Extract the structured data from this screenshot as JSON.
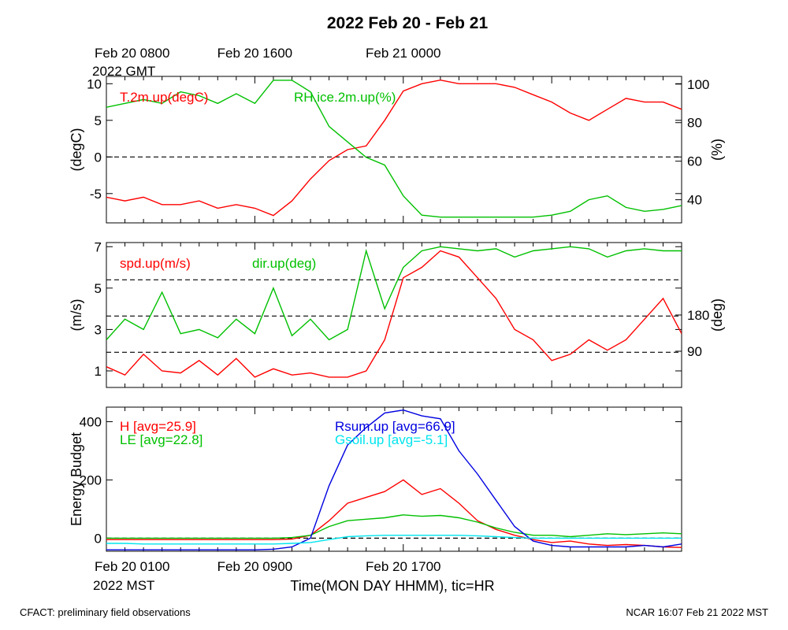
{
  "chart_data": {
    "title": "2022 Feb 20 - Feb 21",
    "x_range": [
      0,
      31
    ],
    "top_tick_labels": [
      {
        "hour": 0,
        "line1": "Feb 20 0800",
        "line2": "2022 GMT"
      },
      {
        "hour": 8,
        "line1": "Feb 20 1600",
        "line2": ""
      },
      {
        "hour": 16,
        "line1": "Feb 21 0000",
        "line2": ""
      }
    ],
    "bottom_tick_labels": [
      {
        "hour": 0,
        "line1": "Feb 20 0100",
        "line2": "2022 MST"
      },
      {
        "hour": 8,
        "line1": "Feb 20 0900",
        "line2": ""
      },
      {
        "hour": 16,
        "line1": "Feb 20 1700",
        "line2": ""
      }
    ],
    "xlabel": "Time(MON DAY HHMM), tic=HR",
    "footer_left": "CFACT: preliminary field observations",
    "footer_right": "NCAR 16:07 Feb 21 2022 MST",
    "panels": [
      {
        "type": "line",
        "ylabel_left": "(degC)",
        "ylabel_right": "(%)",
        "ylim_left": [
          -9,
          11
        ],
        "ylim_right": [
          28,
          104
        ],
        "yticks_left": [
          -5,
          0,
          5,
          10
        ],
        "yticks_right": [
          40,
          60,
          80,
          100
        ],
        "dashed_left": [
          0
        ],
        "series": [
          {
            "name": "T.2m.up(degC)",
            "axis": "left",
            "color": "#ff0000",
            "x": [
              0,
              1,
              2,
              3,
              4,
              5,
              6,
              7,
              8,
              9,
              10,
              11,
              12,
              13,
              14,
              15,
              16,
              17,
              18,
              19,
              20,
              21,
              22,
              23,
              24,
              25,
              26,
              27,
              28,
              29,
              30,
              31
            ],
            "y": [
              -5.5,
              -6,
              -5.5,
              -6.5,
              -6.5,
              -6,
              -7,
              -6.5,
              -7,
              -8,
              -6,
              -3,
              -0.5,
              1,
              1.5,
              5,
              9,
              10,
              10.5,
              10,
              10,
              10,
              9.5,
              8.5,
              7.5,
              6,
              5,
              6.5,
              8,
              7.5,
              7.5,
              6.5
            ]
          },
          {
            "name": "RH.ice.2m.up(%)",
            "axis": "right",
            "color": "#00c000",
            "x": [
              0,
              1,
              2,
              3,
              4,
              5,
              6,
              7,
              8,
              9,
              10,
              11,
              12,
              13,
              14,
              15,
              16,
              17,
              18,
              19,
              20,
              21,
              22,
              23,
              24,
              25,
              26,
              27,
              28,
              29,
              30,
              31
            ],
            "y": [
              88,
              90,
              92,
              90,
              96,
              94,
              90,
              95,
              90,
              102,
              102,
              96,
              78,
              70,
              62,
              58,
              42,
              32,
              31,
              31,
              31,
              31,
              31,
              31,
              32,
              34,
              40,
              42,
              36,
              34,
              35,
              37
            ]
          }
        ]
      },
      {
        "type": "line",
        "ylabel_left": "(m/s)",
        "ylabel_right": "(deg)",
        "ylim_left": [
          0.2,
          7.2
        ],
        "ylim_right": [
          0,
          360
        ],
        "yticks_left": [
          1,
          3,
          5,
          7
        ],
        "yticks_right": [
          90,
          180
        ],
        "dashed_left": [
          1.9,
          3.65,
          5.4
        ],
        "series": [
          {
            "name": "spd.up(m/s)",
            "axis": "left",
            "color": "#ff0000",
            "x": [
              0,
              1,
              2,
              3,
              4,
              5,
              6,
              7,
              8,
              9,
              10,
              11,
              12,
              13,
              14,
              15,
              16,
              17,
              18,
              19,
              20,
              21,
              22,
              23,
              24,
              25,
              26,
              27,
              28,
              29,
              30,
              31
            ],
            "y": [
              1.2,
              0.8,
              1.8,
              1.0,
              0.9,
              1.5,
              0.8,
              1.6,
              0.7,
              1.1,
              0.8,
              0.9,
              0.7,
              0.7,
              1.0,
              2.5,
              5.5,
              6.0,
              6.8,
              6.5,
              5.5,
              4.5,
              3.0,
              2.5,
              1.5,
              1.8,
              2.5,
              2.0,
              2.5,
              3.5,
              4.5,
              2.8
            ]
          },
          {
            "name": "dir.up(deg)",
            "axis": "left",
            "color": "#00c000",
            "x": [
              0,
              1,
              2,
              3,
              4,
              5,
              6,
              7,
              8,
              9,
              10,
              11,
              12,
              13,
              14,
              15,
              16,
              17,
              18,
              19,
              20,
              21,
              22,
              23,
              24,
              25,
              26,
              27,
              28,
              29,
              30,
              31
            ],
            "y": [
              2.5,
              3.5,
              3.0,
              4.8,
              2.8,
              3.0,
              2.6,
              3.5,
              2.8,
              5.0,
              2.7,
              3.5,
              2.5,
              3.0,
              6.8,
              4.0,
              6.0,
              6.8,
              7.0,
              6.9,
              6.8,
              6.9,
              6.5,
              6.8,
              6.9,
              7.0,
              6.9,
              6.5,
              6.8,
              6.9,
              6.8,
              6.8
            ]
          }
        ]
      },
      {
        "type": "line",
        "ylabel_left": "Energy Budget",
        "ylabel_right": "",
        "ylim_left": [
          -45,
          450
        ],
        "ylim_right": [],
        "yticks_left": [
          0,
          200,
          400
        ],
        "yticks_right": [],
        "dashed_left": [
          0
        ],
        "series": [
          {
            "name": "H [avg=25.9]",
            "axis": "left",
            "color": "#ff0000",
            "x": [
              0,
              1,
              2,
              3,
              4,
              5,
              6,
              7,
              8,
              9,
              10,
              11,
              12,
              13,
              14,
              15,
              16,
              17,
              18,
              19,
              20,
              21,
              22,
              23,
              24,
              25,
              26,
              27,
              28,
              29,
              30,
              31
            ],
            "y": [
              -5,
              -5,
              -5,
              -5,
              -5,
              -5,
              -5,
              -5,
              -5,
              -5,
              -3,
              10,
              60,
              120,
              140,
              160,
              200,
              150,
              170,
              120,
              60,
              30,
              10,
              -5,
              -15,
              -10,
              -20,
              -25,
              -22,
              -25,
              -30,
              -32
            ]
          },
          {
            "name": "LE [avg=22.8]",
            "axis": "left",
            "color": "#00c000",
            "x": [
              0,
              1,
              2,
              3,
              4,
              5,
              6,
              7,
              8,
              9,
              10,
              11,
              12,
              13,
              14,
              15,
              16,
              17,
              18,
              19,
              20,
              21,
              22,
              23,
              24,
              25,
              26,
              27,
              28,
              29,
              30,
              31
            ],
            "y": [
              0,
              0,
              0,
              0,
              0,
              0,
              0,
              0,
              0,
              0,
              2,
              10,
              40,
              60,
              65,
              70,
              80,
              75,
              78,
              70,
              55,
              35,
              20,
              10,
              10,
              5,
              10,
              15,
              12,
              15,
              18,
              15
            ]
          },
          {
            "name": "Rsum.up [avg=66.9]",
            "axis": "left",
            "color": "#0000e0",
            "x": [
              0,
              1,
              2,
              3,
              4,
              5,
              6,
              7,
              8,
              9,
              10,
              11,
              12,
              13,
              14,
              15,
              16,
              17,
              18,
              19,
              20,
              21,
              22,
              23,
              24,
              25,
              26,
              27,
              28,
              29,
              30,
              31
            ],
            "y": [
              -40,
              -40,
              -40,
              -40,
              -40,
              -40,
              -40,
              -40,
              -40,
              -38,
              -30,
              0,
              180,
              320,
              380,
              430,
              440,
              420,
              410,
              300,
              220,
              130,
              40,
              -10,
              -25,
              -30,
              -30,
              -30,
              -30,
              -25,
              -30,
              -20
            ]
          },
          {
            "name": "Gsoil.up [avg=-5.1]",
            "axis": "left",
            "color": "#00e5ee",
            "x": [
              0,
              1,
              2,
              3,
              4,
              5,
              6,
              7,
              8,
              9,
              10,
              11,
              12,
              13,
              14,
              15,
              16,
              17,
              18,
              19,
              20,
              21,
              22,
              23,
              24,
              25,
              26,
              27,
              28,
              29,
              30,
              31
            ],
            "y": [
              -18,
              -18,
              -20,
              -20,
              -20,
              -20,
              -20,
              -20,
              -20,
              -20,
              -18,
              -15,
              -5,
              5,
              8,
              10,
              10,
              10,
              10,
              10,
              8,
              5,
              2,
              0,
              0,
              0,
              0,
              0,
              0,
              0,
              0,
              0
            ]
          }
        ]
      }
    ]
  }
}
